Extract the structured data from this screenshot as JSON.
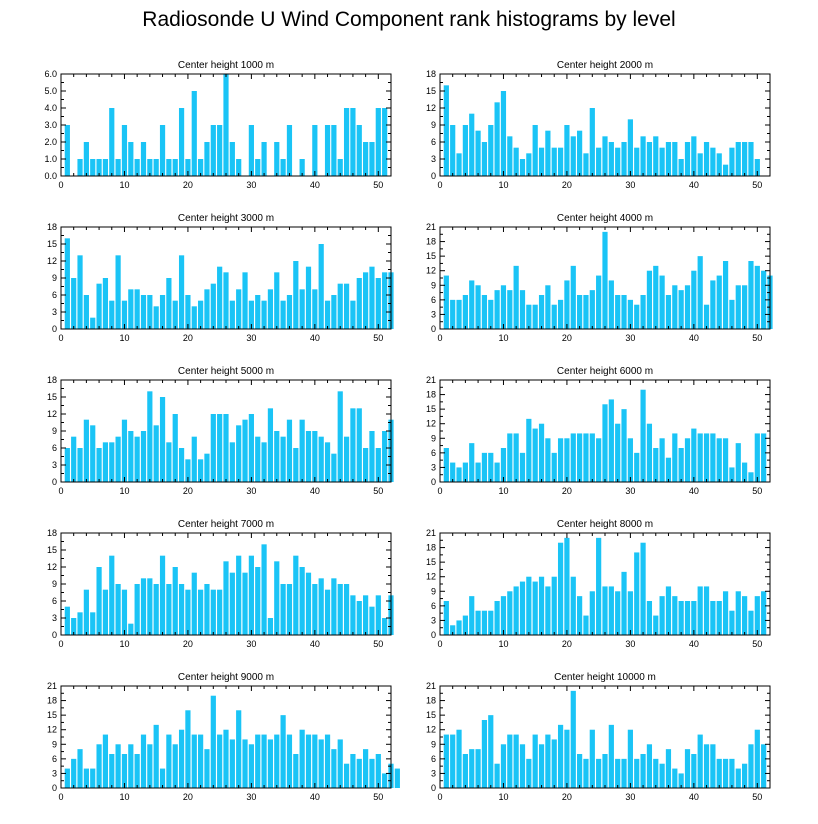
{
  "figure_title": "Radiosonde U Wind Component rank histograms by level",
  "colors": {
    "bar": "#1ac4f6",
    "axis": "#000000"
  },
  "chart_data": [
    {
      "type": "bar",
      "title": "Center height 1000 m",
      "ylim": [
        0,
        6
      ],
      "yticks": [
        0,
        1,
        2,
        3,
        4,
        5,
        6
      ],
      "ytick_labels": [
        "0.0",
        "1.0",
        "2.0",
        "3.0",
        "4.0",
        "5.0",
        "6.0"
      ],
      "xlim": [
        0,
        52
      ],
      "xticks": [
        0,
        10,
        20,
        30,
        40,
        50
      ],
      "ytick_side": "left",
      "values": [
        3,
        0,
        1,
        2,
        1,
        1,
        1,
        4,
        1,
        3,
        2,
        1,
        2,
        1,
        1,
        3,
        1,
        1,
        4,
        1,
        5,
        1,
        2,
        3,
        3,
        6,
        2,
        1,
        0,
        3,
        1,
        2,
        0,
        2,
        1,
        3,
        0,
        1,
        0,
        3,
        0,
        3,
        3,
        1,
        4,
        4,
        3,
        2,
        2,
        4,
        4
      ]
    },
    {
      "type": "bar",
      "title": "Center height 2000 m",
      "ylim": [
        0,
        18
      ],
      "yticks": [
        0,
        3,
        6,
        9,
        12,
        15,
        18
      ],
      "ytick_labels": [
        "0",
        "3",
        "6",
        "9",
        "12",
        "15",
        "18"
      ],
      "xlim": [
        0,
        52
      ],
      "xticks": [
        0,
        10,
        20,
        30,
        40,
        50
      ],
      "ytick_side": "both",
      "values": [
        16,
        9,
        4,
        9,
        11,
        8,
        6,
        9,
        13,
        15,
        7,
        5,
        3,
        4,
        9,
        5,
        8,
        5,
        5,
        9,
        7,
        8,
        4,
        12,
        5,
        7,
        6,
        5,
        6,
        10,
        5,
        7,
        6,
        7,
        5,
        6,
        6,
        3,
        6,
        7,
        4,
        6,
        5,
        4,
        2,
        5,
        6,
        6,
        6,
        3
      ]
    },
    {
      "type": "bar",
      "title": "Center height 3000 m",
      "ylim": [
        0,
        18
      ],
      "yticks": [
        0,
        3,
        6,
        9,
        12,
        15,
        18
      ],
      "ytick_labels": [
        "0",
        "3",
        "6",
        "9",
        "12",
        "15",
        "18"
      ],
      "xlim": [
        0,
        52
      ],
      "xticks": [
        0,
        10,
        20,
        30,
        40,
        50
      ],
      "ytick_side": "left",
      "values": [
        16,
        9,
        13,
        6,
        2,
        8,
        9,
        5,
        13,
        5,
        7,
        7,
        6,
        6,
        4,
        6,
        9,
        5,
        13,
        6,
        4,
        5,
        7,
        8,
        11,
        10,
        5,
        7,
        10,
        5,
        6,
        5,
        7,
        10,
        5,
        6,
        12,
        7,
        11,
        7,
        15,
        5,
        6,
        8,
        8,
        5,
        9,
        10,
        11,
        9,
        10,
        10
      ]
    },
    {
      "type": "bar",
      "title": "Center height 4000 m",
      "ylim": [
        0,
        21
      ],
      "yticks": [
        0,
        3,
        6,
        9,
        12,
        15,
        18,
        21
      ],
      "ytick_labels": [
        "0",
        "3",
        "6",
        "9",
        "12",
        "15",
        "18",
        "21"
      ],
      "xlim": [
        0,
        52
      ],
      "xticks": [
        0,
        10,
        20,
        30,
        40,
        50
      ],
      "ytick_side": "both",
      "values": [
        11,
        6,
        6,
        7,
        10,
        9,
        7,
        6,
        8,
        9,
        8,
        13,
        8,
        5,
        5,
        7,
        9,
        5,
        6,
        10,
        13,
        7,
        7,
        8,
        11,
        20,
        10,
        7,
        7,
        6,
        5,
        7,
        12,
        13,
        11,
        7,
        9,
        8,
        9,
        12,
        15,
        5,
        10,
        11,
        14,
        6,
        9,
        9,
        14,
        13,
        12,
        11
      ]
    },
    {
      "type": "bar",
      "title": "Center height 5000 m",
      "ylim": [
        0,
        18
      ],
      "yticks": [
        0,
        3,
        6,
        9,
        12,
        15,
        18
      ],
      "ytick_labels": [
        "0",
        "3",
        "6",
        "9",
        "12",
        "15",
        "18"
      ],
      "xlim": [
        0,
        52
      ],
      "xticks": [
        0,
        10,
        20,
        30,
        40,
        50
      ],
      "ytick_side": "left",
      "values": [
        6,
        8,
        6,
        11,
        10,
        6,
        7,
        7,
        8,
        11,
        9,
        8,
        9,
        16,
        10,
        15,
        7,
        12,
        6,
        4,
        8,
        4,
        5,
        12,
        12,
        12,
        7,
        10,
        11,
        12,
        8,
        7,
        13,
        9,
        8,
        11,
        6,
        11,
        9,
        9,
        8,
        7,
        5,
        16,
        8,
        13,
        13,
        6,
        9,
        6,
        9,
        11
      ]
    },
    {
      "type": "bar",
      "title": "Center height 6000 m",
      "ylim": [
        0,
        21
      ],
      "yticks": [
        0,
        3,
        6,
        9,
        12,
        15,
        18,
        21
      ],
      "ytick_labels": [
        "0",
        "3",
        "6",
        "9",
        "12",
        "15",
        "18",
        "21"
      ],
      "xlim": [
        0,
        52
      ],
      "xticks": [
        0,
        10,
        20,
        30,
        40,
        50
      ],
      "ytick_side": "both",
      "values": [
        7,
        4,
        3,
        4,
        8,
        4,
        6,
        6,
        4,
        7,
        10,
        10,
        6,
        13,
        11,
        12,
        9,
        6,
        9,
        9,
        10,
        10,
        10,
        10,
        9,
        16,
        17,
        12,
        15,
        9,
        6,
        19,
        12,
        7,
        9,
        5,
        10,
        7,
        9,
        11,
        10,
        10,
        10,
        9,
        9,
        3,
        8,
        4,
        2,
        10,
        10
      ]
    },
    {
      "type": "bar",
      "title": "Center height 7000 m",
      "ylim": [
        0,
        18
      ],
      "yticks": [
        0,
        3,
        6,
        9,
        12,
        15,
        18
      ],
      "ytick_labels": [
        "0",
        "3",
        "6",
        "9",
        "12",
        "15",
        "18"
      ],
      "xlim": [
        0,
        52
      ],
      "xticks": [
        0,
        10,
        20,
        30,
        40,
        50
      ],
      "ytick_side": "left",
      "values": [
        5,
        3,
        4,
        8,
        4,
        12,
        8,
        14,
        9,
        8,
        2,
        9,
        10,
        10,
        9,
        14,
        9,
        12,
        9,
        8,
        11,
        8,
        9,
        8,
        8,
        13,
        11,
        14,
        11,
        14,
        12,
        16,
        3,
        13,
        9,
        9,
        14,
        12,
        11,
        9,
        10,
        8,
        10,
        9,
        9,
        7,
        6,
        7,
        5,
        7,
        3,
        7
      ]
    },
    {
      "type": "bar",
      "title": "Center height 8000 m",
      "ylim": [
        0,
        21
      ],
      "yticks": [
        0,
        3,
        6,
        9,
        12,
        15,
        18,
        21
      ],
      "ytick_labels": [
        "0",
        "3",
        "6",
        "9",
        "12",
        "15",
        "18",
        "21"
      ],
      "xlim": [
        0,
        52
      ],
      "xticks": [
        0,
        10,
        20,
        30,
        40,
        50
      ],
      "ytick_side": "both",
      "values": [
        7,
        2,
        3,
        4,
        8,
        5,
        5,
        5,
        7,
        8,
        9,
        10,
        11,
        12,
        11,
        12,
        10,
        12,
        19,
        20,
        12,
        8,
        4,
        9,
        20,
        10,
        10,
        9,
        13,
        9,
        17,
        19,
        7,
        4,
        8,
        10,
        8,
        7,
        7,
        7,
        10,
        10,
        7,
        7,
        9,
        5,
        9,
        8,
        5,
        8,
        9
      ]
    },
    {
      "type": "bar",
      "title": "Center height 9000 m",
      "ylim": [
        0,
        21
      ],
      "yticks": [
        0,
        3,
        6,
        9,
        12,
        15,
        18,
        21
      ],
      "ytick_labels": [
        "0",
        "3",
        "6",
        "9",
        "12",
        "15",
        "18",
        "21"
      ],
      "xlim": [
        0,
        52
      ],
      "xticks": [
        0,
        10,
        20,
        30,
        40,
        50
      ],
      "ytick_side": "left",
      "values": [
        4,
        6,
        8,
        4,
        4,
        9,
        11,
        7,
        9,
        7,
        9,
        7,
        11,
        9,
        13,
        4,
        11,
        9,
        12,
        16,
        11,
        11,
        8,
        19,
        11,
        12,
        10,
        16,
        10,
        9,
        11,
        11,
        10,
        11,
        15,
        11,
        7,
        12,
        11,
        11,
        10,
        11,
        8,
        10,
        5,
        7,
        6,
        8,
        6,
        7,
        3,
        5,
        4
      ]
    },
    {
      "type": "bar",
      "title": "Center height 10000 m",
      "ylim": [
        0,
        21
      ],
      "yticks": [
        0,
        3,
        6,
        9,
        12,
        15,
        18,
        21
      ],
      "ytick_labels": [
        "0",
        "3",
        "6",
        "9",
        "12",
        "15",
        "18",
        "21"
      ],
      "xlim": [
        0,
        52
      ],
      "xticks": [
        0,
        10,
        20,
        30,
        40,
        50
      ],
      "ytick_side": "both",
      "values": [
        11,
        11,
        12,
        7,
        8,
        8,
        14,
        15,
        5,
        9,
        11,
        11,
        9,
        6,
        11,
        9,
        11,
        10,
        13,
        12,
        20,
        7,
        6,
        12,
        6,
        7,
        13,
        6,
        6,
        12,
        6,
        7,
        9,
        6,
        5,
        8,
        4,
        3,
        8,
        7,
        11,
        9,
        9,
        6,
        6,
        6,
        4,
        5,
        9,
        12,
        9
      ]
    }
  ]
}
